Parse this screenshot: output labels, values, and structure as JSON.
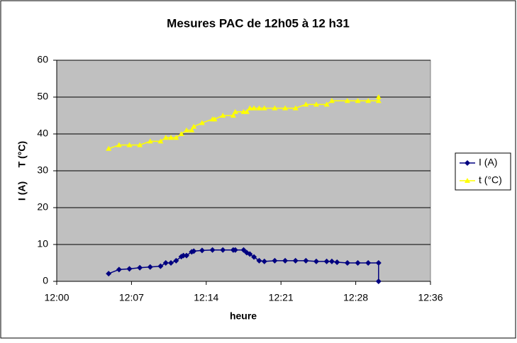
{
  "chart_data": {
    "type": "line",
    "title": "Mesures PAC de 12h05 à 12 h31",
    "x_label": "heure",
    "y_label": "I (A)     T (°C)",
    "xlim": [
      0,
      36
    ],
    "xticks": [
      {
        "value": 0,
        "label": "12:00"
      },
      {
        "value": 7.2,
        "label": "12:07"
      },
      {
        "value": 14.4,
        "label": "12:14"
      },
      {
        "value": 21.6,
        "label": "12:21"
      },
      {
        "value": 28.8,
        "label": "12:28"
      },
      {
        "value": 36,
        "label": "12:36"
      }
    ],
    "ylim": [
      0,
      60
    ],
    "yticks": [
      0,
      10,
      20,
      30,
      40,
      50,
      60
    ],
    "grid": true,
    "legend": "right",
    "series": [
      {
        "name": "I (A)",
        "color": "#000080",
        "marker": "diamond",
        "x": [
          5,
          6,
          7,
          8,
          9,
          10,
          10.5,
          11,
          11.5,
          12,
          12.2,
          12.5,
          13,
          13.2,
          14,
          15,
          16,
          17,
          17.2,
          18,
          18.3,
          18.6,
          19,
          19.5,
          20,
          21,
          22,
          23,
          24,
          25,
          26,
          26.5,
          27,
          28,
          29,
          30,
          31,
          31
        ],
        "values": [
          2.1,
          3.2,
          3.4,
          3.7,
          3.9,
          4.1,
          5,
          5,
          5.6,
          6.7,
          7,
          7,
          8,
          8.2,
          8.4,
          8.5,
          8.5,
          8.5,
          8.5,
          8.5,
          7.8,
          7.4,
          6.6,
          5.6,
          5.4,
          5.6,
          5.6,
          5.6,
          5.6,
          5.4,
          5.4,
          5.4,
          5.2,
          5,
          5,
          5,
          5,
          0
        ]
      },
      {
        "name": "t (°C)",
        "color": "#ffff00",
        "marker": "triangle",
        "x": [
          5,
          6,
          7,
          8,
          9,
          10,
          10.5,
          11,
          11.5,
          12,
          12.5,
          13,
          13.2,
          14,
          15,
          15.2,
          16,
          17,
          17.2,
          18,
          18.3,
          18.6,
          19,
          19.5,
          20,
          21,
          22,
          23,
          24,
          25,
          26,
          26.5,
          28,
          29,
          30,
          31,
          31
        ],
        "values": [
          36,
          37,
          37,
          37,
          38,
          38,
          39,
          39,
          39,
          40,
          41,
          41,
          42,
          43,
          44,
          44,
          45,
          45,
          46,
          46,
          46,
          47,
          47,
          47,
          47,
          47,
          47,
          47,
          48,
          48,
          48,
          49,
          49,
          49,
          49,
          49,
          50
        ]
      }
    ]
  }
}
